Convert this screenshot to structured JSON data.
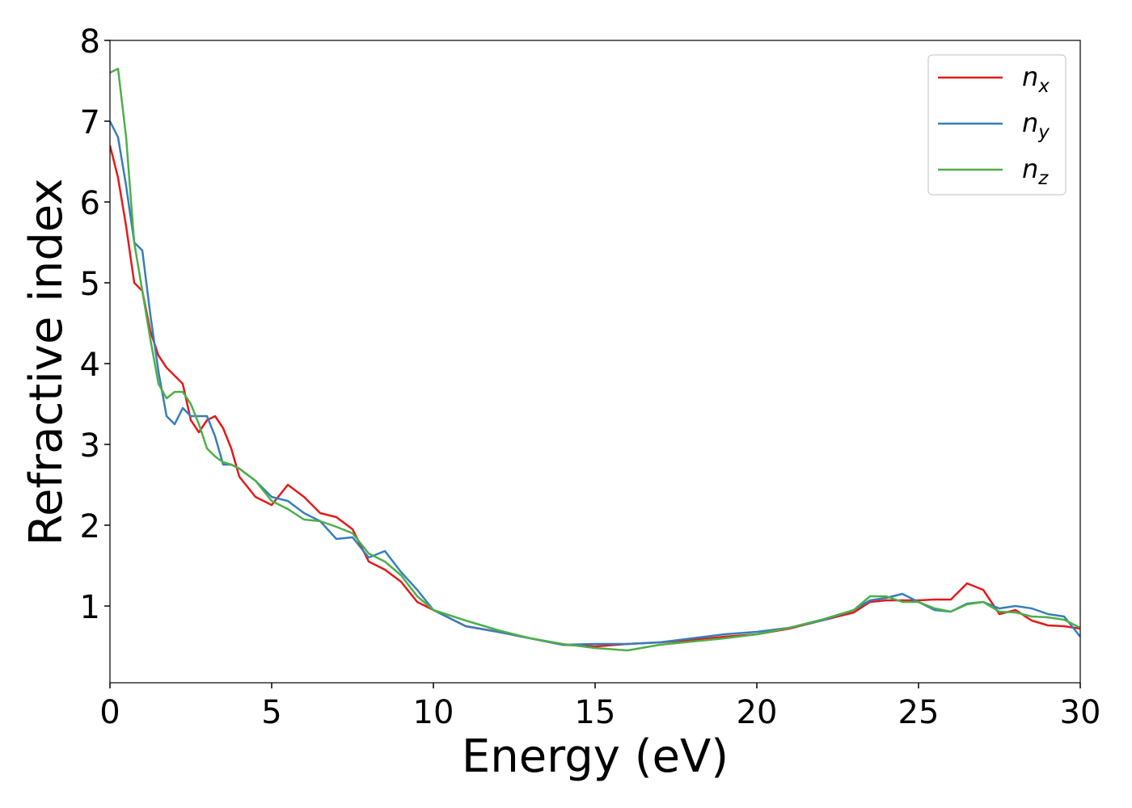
{
  "chart_data": {
    "type": "line",
    "x_label": "Energy (eV)",
    "y_label": "Refractive index",
    "x": [
      0,
      0.25,
      0.5,
      0.75,
      1,
      1.25,
      1.5,
      1.75,
      2,
      2.25,
      2.5,
      2.75,
      3,
      3.25,
      3.5,
      3.75,
      4,
      4.5,
      5,
      5.5,
      6,
      6.5,
      7,
      7.5,
      8,
      8.5,
      9,
      9.5,
      10,
      11,
      12,
      13,
      14,
      15,
      16,
      17,
      18,
      19,
      20,
      21,
      22,
      23,
      23.5,
      24,
      24.5,
      25,
      25.5,
      26,
      26.5,
      27,
      27.5,
      28,
      28.5,
      29,
      29.5,
      30
    ],
    "series": [
      {
        "name": "n_x",
        "color": "#e41a1c",
        "values": [
          6.7,
          6.3,
          5.7,
          5.0,
          4.9,
          4.4,
          4.1,
          3.95,
          3.85,
          3.75,
          3.3,
          3.15,
          3.3,
          3.35,
          3.2,
          2.95,
          2.6,
          2.35,
          2.25,
          2.5,
          2.35,
          2.15,
          2.1,
          1.95,
          1.55,
          1.45,
          1.3,
          1.05,
          0.95,
          0.75,
          0.68,
          0.6,
          0.52,
          0.5,
          0.53,
          0.55,
          0.58,
          0.62,
          0.65,
          0.72,
          0.82,
          0.92,
          1.05,
          1.07,
          1.07,
          1.07,
          1.08,
          1.08,
          1.28,
          1.2,
          0.9,
          0.95,
          0.82,
          0.76,
          0.75,
          0.72
        ]
      },
      {
        "name": "n_y",
        "color": "#377eb8",
        "values": [
          7.0,
          6.8,
          6.2,
          5.5,
          5.4,
          4.6,
          3.9,
          3.35,
          3.25,
          3.45,
          3.35,
          3.35,
          3.35,
          3.1,
          2.75,
          2.75,
          2.7,
          2.55,
          2.35,
          2.3,
          2.15,
          2.05,
          1.83,
          1.85,
          1.6,
          1.68,
          1.42,
          1.2,
          0.95,
          0.75,
          0.68,
          0.6,
          0.52,
          0.53,
          0.53,
          0.55,
          0.6,
          0.65,
          0.68,
          0.73,
          0.82,
          0.95,
          1.07,
          1.1,
          1.15,
          1.05,
          0.95,
          0.93,
          1.03,
          1.05,
          0.97,
          1.0,
          0.97,
          0.9,
          0.87,
          0.62
        ]
      },
      {
        "name": "n_z",
        "color": "#4daf4a",
        "values": [
          7.6,
          7.65,
          6.8,
          5.5,
          4.9,
          4.3,
          3.75,
          3.57,
          3.65,
          3.65,
          3.5,
          3.25,
          2.95,
          2.85,
          2.78,
          2.75,
          2.7,
          2.55,
          2.3,
          2.2,
          2.07,
          2.05,
          1.98,
          1.9,
          1.65,
          1.55,
          1.38,
          1.12,
          0.95,
          0.82,
          0.7,
          0.6,
          0.53,
          0.48,
          0.45,
          0.52,
          0.56,
          0.6,
          0.65,
          0.73,
          0.83,
          0.95,
          1.12,
          1.12,
          1.05,
          1.05,
          0.97,
          0.93,
          1.02,
          1.05,
          0.93,
          0.92,
          0.87,
          0.86,
          0.83,
          0.73
        ]
      }
    ],
    "xlim": [
      0,
      30
    ],
    "xticks": [
      0,
      5,
      10,
      15,
      20,
      25,
      30
    ],
    "ylim": [
      0.05,
      8
    ],
    "yticks": [
      1,
      2,
      3,
      4,
      5,
      6,
      7,
      8
    ],
    "legend": "upper right",
    "grid": false
  }
}
